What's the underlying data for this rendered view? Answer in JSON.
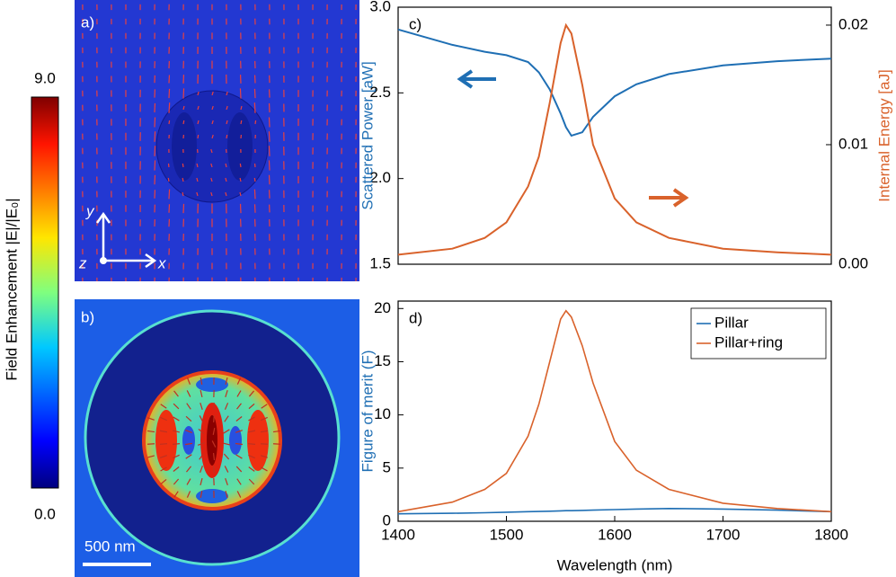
{
  "colorbar": {
    "label": "Field Enhancement |E|/|E₀|",
    "lim": [
      0,
      9
    ],
    "ticks": [
      {
        "value": 9,
        "label": "9.0"
      },
      {
        "value": 0,
        "label": "0.0"
      }
    ]
  },
  "panel_a": {
    "label": "a)",
    "axis_y": "y",
    "axis_z": "z",
    "axis_x": "x"
  },
  "panel_b": {
    "label": "b)",
    "scale_bar": "500 nm"
  },
  "chart_data": [
    {
      "type": "line",
      "annotation": "c)",
      "ylabel": "Scattered Power [aW]",
      "y2label": "Internal Energy [aJ]",
      "x": [
        1400,
        1450,
        1480,
        1500,
        1520,
        1530,
        1540,
        1550,
        1555,
        1560,
        1570,
        1580,
        1600,
        1620,
        1650,
        1700,
        1750,
        1800
      ],
      "series": [
        {
          "color": "#1f6fb4",
          "values": [
            2.87,
            2.78,
            2.74,
            2.72,
            2.68,
            2.62,
            2.52,
            2.38,
            2.3,
            2.25,
            2.27,
            2.36,
            2.48,
            2.55,
            2.61,
            2.66,
            2.685,
            2.7
          ]
        },
        {
          "color": "#d9622b",
          "axis": "y2",
          "values": [
            0.0008,
            0.0013,
            0.0022,
            0.0035,
            0.0065,
            0.009,
            0.0135,
            0.0185,
            0.02,
            0.0193,
            0.015,
            0.01,
            0.0055,
            0.0035,
            0.0022,
            0.0013,
            0.001,
            0.0008
          ]
        }
      ],
      "xlim": [
        1400,
        1800
      ],
      "ylim": [
        1.5,
        3.0
      ],
      "yticks": [
        {
          "value": 1.5,
          "label": "1.5"
        },
        {
          "value": 2,
          "label": "2.0"
        },
        {
          "value": 2.5,
          "label": "2.5"
        },
        {
          "value": 3,
          "label": "3.0"
        }
      ],
      "y2lim": [
        0,
        0.0215
      ],
      "y2ticks": [
        {
          "value": 0,
          "label": "0.00"
        },
        0.01,
        0.02
      ]
    },
    {
      "type": "line",
      "annotation": "d)",
      "ylabel": "Figure of merit (F)",
      "xlabel": "Wavelength (nm)",
      "legend": "upper right",
      "x": [
        1400,
        1450,
        1480,
        1500,
        1520,
        1530,
        1540,
        1550,
        1555,
        1560,
        1570,
        1580,
        1600,
        1620,
        1650,
        1700,
        1750,
        1800
      ],
      "series": [
        {
          "name": "Pillar",
          "color": "#1f6fb4",
          "values": [
            0.7,
            0.75,
            0.8,
            0.85,
            0.9,
            0.92,
            0.95,
            0.98,
            1.0,
            1.0,
            1.02,
            1.05,
            1.1,
            1.15,
            1.2,
            1.15,
            1.05,
            0.9
          ]
        },
        {
          "name": "Pillar+ring",
          "color": "#d9622b",
          "values": [
            0.9,
            1.8,
            3.0,
            4.5,
            8,
            11,
            15,
            19,
            19.8,
            19.2,
            16.5,
            13,
            7.5,
            4.8,
            3.0,
            1.7,
            1.2,
            0.9
          ]
        }
      ],
      "xlim": [
        1400,
        1800
      ],
      "ylim": [
        0,
        20.7
      ],
      "xticks": [
        1400,
        1500,
        1600,
        1700,
        1800
      ],
      "yticks": [
        0,
        5,
        10,
        15,
        20
      ]
    }
  ]
}
